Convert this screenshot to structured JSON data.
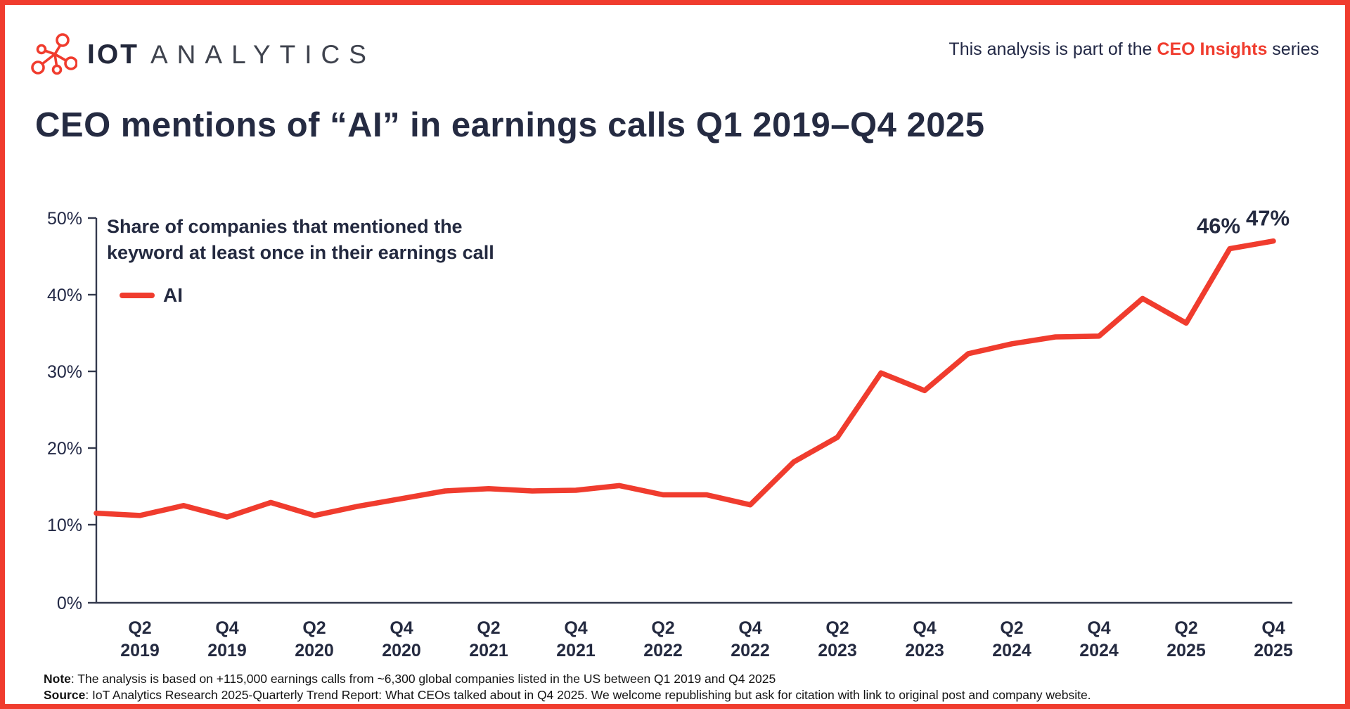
{
  "header": {
    "logo": {
      "icon": "molecule-network-icon",
      "icon_color": "#F03C2E",
      "brand_bold": "IOT",
      "brand_light": "ANALYTICS"
    },
    "tagline": {
      "prefix": "This analysis is part of the ",
      "highlight": "CEO Insights",
      "suffix": " series"
    }
  },
  "title": "CEO mentions of “AI” in earnings calls Q1 2019–Q4 2025",
  "chart_data": {
    "type": "line",
    "title": "CEO mentions of “AI” in earnings calls Q1 2019–Q4 2025",
    "subtitle_lines": {
      "0": "Share of companies that mentioned the",
      "1": "keyword at least once in their earnings call"
    },
    "legend": [
      {
        "name": "AI",
        "color": "#F03C2E"
      }
    ],
    "x": [
      "Q1 2019",
      "Q2 2019",
      "Q3 2019",
      "Q4 2019",
      "Q1 2020",
      "Q2 2020",
      "Q3 2020",
      "Q4 2020",
      "Q1 2021",
      "Q2 2021",
      "Q3 2021",
      "Q4 2021",
      "Q1 2022",
      "Q2 2022",
      "Q3 2022",
      "Q4 2022",
      "Q1 2023",
      "Q2 2023",
      "Q3 2023",
      "Q4 2023",
      "Q1 2024",
      "Q2 2024",
      "Q3 2024",
      "Q4 2024",
      "Q1 2025",
      "Q2 2025",
      "Q3 2025",
      "Q4 2025"
    ],
    "series": [
      {
        "name": "AI",
        "values": [
          11.5,
          11.2,
          12.5,
          11.0,
          12.9,
          11.2,
          12.4,
          13.4,
          14.4,
          14.7,
          14.4,
          14.5,
          15.1,
          13.9,
          13.9,
          12.6,
          18.2,
          21.4,
          29.8,
          27.5,
          32.3,
          33.6,
          34.5,
          34.6,
          39.5,
          36.3,
          46,
          47
        ]
      }
    ],
    "ylim": [
      0,
      50
    ],
    "y_ticks": [
      "0%",
      "10%",
      "20%",
      "30%",
      "40%",
      "50%"
    ],
    "x_tick_every_other_start": "Q2 2019",
    "grid": false,
    "legend_position": "top-left",
    "line_color": "#F03C2E",
    "axis_color": "#33394d",
    "annotations": [
      {
        "x": "Q3 2025",
        "value": 46,
        "text": "46%"
      },
      {
        "x": "Q4 2025",
        "value": 47,
        "text": "47%"
      }
    ]
  },
  "footer": {
    "note_label": "Note",
    "note_text": ": The analysis is based on +115,000 earnings calls from ~6,300 global companies listed in the US between Q1 2019 and Q4 2025",
    "source_label": "Source",
    "source_text": ": IoT Analytics Research 2025-Quarterly Trend Report: What CEOs talked about in Q4 2025. We welcome republishing but ask for citation with link to original post and company website."
  }
}
